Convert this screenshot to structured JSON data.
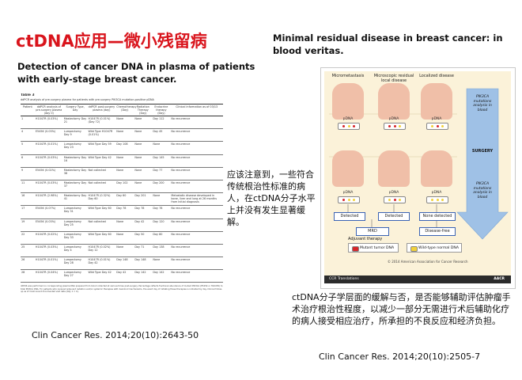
{
  "title": "ctDNA应用—微小残留病",
  "subtitle_left": "Detection of cancer DNA in plasma of patients with early-stage breast cancer.",
  "subtitle_right": "Minimal residual disease in breast cancer: in blood veritas.",
  "table": {
    "name": "Table 3",
    "caption": "ddPCR analysis of pre-surgery plasma for patients with pre-surgery PIK3CA mutation-positive pDNA",
    "headers": [
      "Patient",
      "ddPCR analysis of pre-surgery plasma (day 0)",
      "Surgery Type, Day",
      "ddPCR post-surgery plasma (day)",
      "Chemotherapy (Day)",
      "Radiation Therapy (Day)",
      "Endocrine therapy (Day)",
      "Clinical information as of 03/13"
    ],
    "rows": [
      [
        "1",
        "H1047R (0.03%)",
        "Mastectomy Day 21",
        "H1047R (0.01%) (Day 72)",
        "None",
        "None",
        "Day 112",
        "No recurrence"
      ],
      [
        "4",
        "E545K (0.03%)",
        "Lumpectomy Day 9",
        "Wild Type H1047R (0.01%)",
        "None",
        "None",
        "Day 45",
        "No recurrence"
      ],
      [
        "5",
        "H1047R (0.01%)",
        "Lumpectomy Day 23",
        "Wild Type Day 59",
        "Day 108",
        "None",
        "None",
        "No recurrence"
      ],
      [
        "6",
        "H1047R (0.03%)",
        "Mastectomy Day 16",
        "Wild Type Day 42",
        "None",
        "None",
        "Day 145",
        "No recurrence"
      ],
      [
        "9",
        "E545K (0.02%)",
        "Mastectomy Day 38",
        "Not collected",
        "None",
        "None",
        "Day 77",
        "No recurrence"
      ],
      [
        "11",
        "H1047R (0.03%)",
        "Mastectomy Day 37",
        "Not collected",
        "Day 102",
        "None",
        "Day 200",
        "No recurrence"
      ],
      [
        "16",
        "H1047R (2.98%)",
        "Mastectomy Day 41",
        "H1047R (0.32%) Day 60",
        "Day 60",
        "Day 201",
        "None",
        "Metastatic disease developed in bone, liver and lung at 26 months from initial diagnosis"
      ],
      [
        "17",
        "E545K (0.07%)",
        "Lumpectomy Day 31",
        "Wild Type Day 60",
        "Day 78",
        "Day 78",
        "Day 78",
        "No recurrence"
      ],
      [
        "19",
        "E545K (0.03%)",
        "Lumpectomy Day 25",
        "Not collected",
        "None",
        "Day 42",
        "Day 120",
        "No recurrence"
      ],
      [
        "22",
        "H1047R (0.02%)",
        "Lumpectomy Day 33",
        "Wild Type Day 60",
        "None",
        "Day 50",
        "Day 80",
        "No recurrence"
      ],
      [
        "25",
        "H1047R (0.03%)",
        "Lumpectomy Day 4",
        "H1047R (0.02%) Day 12",
        "None",
        "Day 71",
        "Day 138",
        "No recurrence"
      ],
      [
        "26",
        "H1047R (0.01%)",
        "Lumpectomy Day 28",
        "H1047R (0.01%) Day 42",
        "Day 148",
        "Day 148",
        "None",
        "No recurrence"
      ],
      [
        "28",
        "H1047R (0.04%)",
        "Lumpectomy Day 27",
        "Wild Type Day 42",
        "Day 42",
        "Day 142",
        "Day 142",
        "No recurrence"
      ]
    ],
    "footnote": "ddPCR was performed on corresponding plasma DNA prepared from blood collected at various times post-surgery. Percentage reflects fractional abundance of mutant PIK3CA (E545K or H1047R) to total PIK3CA DNA. For patients who received adjuvant radiation and/or systemic therapies with dual-bind mechanisms, the exact day of initiating these therapies is indicated by day. Clinical follow-up as of most recent documented visit date (Day 1 = 0)."
  },
  "citation_left": "Clin Cancer Res. 2014;20(10):2643-50",
  "note_middle": "应该注意到，一些符合传统根治性标准的病人，在ctDNA分子水平上并没有发生显著缓解。",
  "figure": {
    "col_heads": [
      "Micrometastasis",
      "Microscopic residual local disease",
      "Localized disease"
    ],
    "arrow_top": "PIK3CA mutations analysis in blood",
    "arrow_mid": "SURGERY",
    "arrow_bottom": "PIK3CA mutations analysis in blood",
    "blood_label": "pDNA",
    "box_detected": "Detected",
    "box_none": "None detected",
    "box_mrd": "MRD",
    "box_free": "Disease-free",
    "adjuvant": "Adjuvant therapy",
    "legend_mutant": "Mutant tumor DNA",
    "legend_wild": "Wild-type normal DNA",
    "copyright": "© 2014 American Association for Cancer Research",
    "footer_left": "CCR Translations",
    "footer_right": "AACR",
    "colors": {
      "mutant": "#d7262b",
      "wild": "#f2d13a",
      "arrow": "#9fc1e6",
      "box_border": "#3a63b3"
    }
  },
  "note_right": "ctDNA分子学层面的缓解与否，是否能够辅助评估肿瘤手术治疗根治性程度，以减少一部分无需进行术后辅助化疗的病人接受相应治疗，所承担的不良反应和经济负担。",
  "citation_right": "Clin Cancer Res. 2014;20(10):2505-7"
}
